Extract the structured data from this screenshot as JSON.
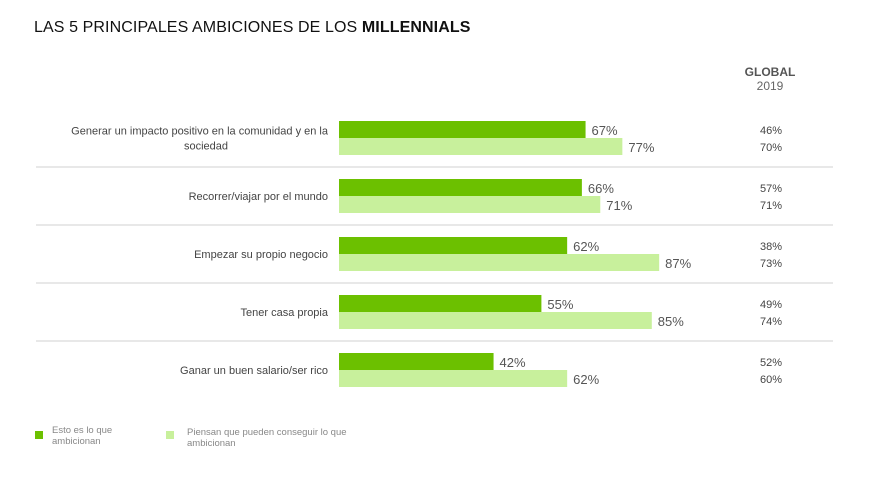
{
  "title": {
    "prefix": "LAS 5 PRINCIPALES AMBICIONES DE LOS ",
    "bold": "MILLENNIALS"
  },
  "global_header": {
    "line1": "GLOBAL",
    "line2": "2019"
  },
  "colors": {
    "series1": "#6cc000",
    "series2": "#c8f09c",
    "separator": "#d0d0d0",
    "label": "#444444"
  },
  "legend": [
    {
      "label": "Esto es lo que ambicionan",
      "color": "#6cc000"
    },
    {
      "label": "Piensan que pueden conseguir lo que ambicionan",
      "color": "#c8f09c"
    }
  ],
  "chart_data": {
    "type": "bar",
    "orientation": "horizontal",
    "categories": [
      "Generar un impacto positivo en la comunidad y en la sociedad",
      "Recorrer/viajar por el mundo",
      "Empezar su propio negocio",
      "Tener casa propia",
      "Ganar un buen salario/ser rico"
    ],
    "series": [
      {
        "name": "Esto es lo que ambicionan",
        "values": [
          67,
          66,
          62,
          55,
          42
        ]
      },
      {
        "name": "Piensan que pueden conseguir lo que ambicionan",
        "values": [
          77,
          71,
          87,
          85,
          62
        ]
      }
    ],
    "value_labels": [
      [
        "67%",
        "66%",
        "62%",
        "55%",
        "42%"
      ],
      [
        "77%",
        "71%",
        "87%",
        "85%",
        "62%"
      ]
    ],
    "global_2019": [
      [
        "46%",
        "70%"
      ],
      [
        "57%",
        "71%"
      ],
      [
        "38%",
        "73%"
      ],
      [
        "49%",
        "74%"
      ],
      [
        "52%",
        "60%"
      ]
    ],
    "xlim": [
      0,
      100
    ],
    "grid": false,
    "legend_position": "bottom-left"
  }
}
